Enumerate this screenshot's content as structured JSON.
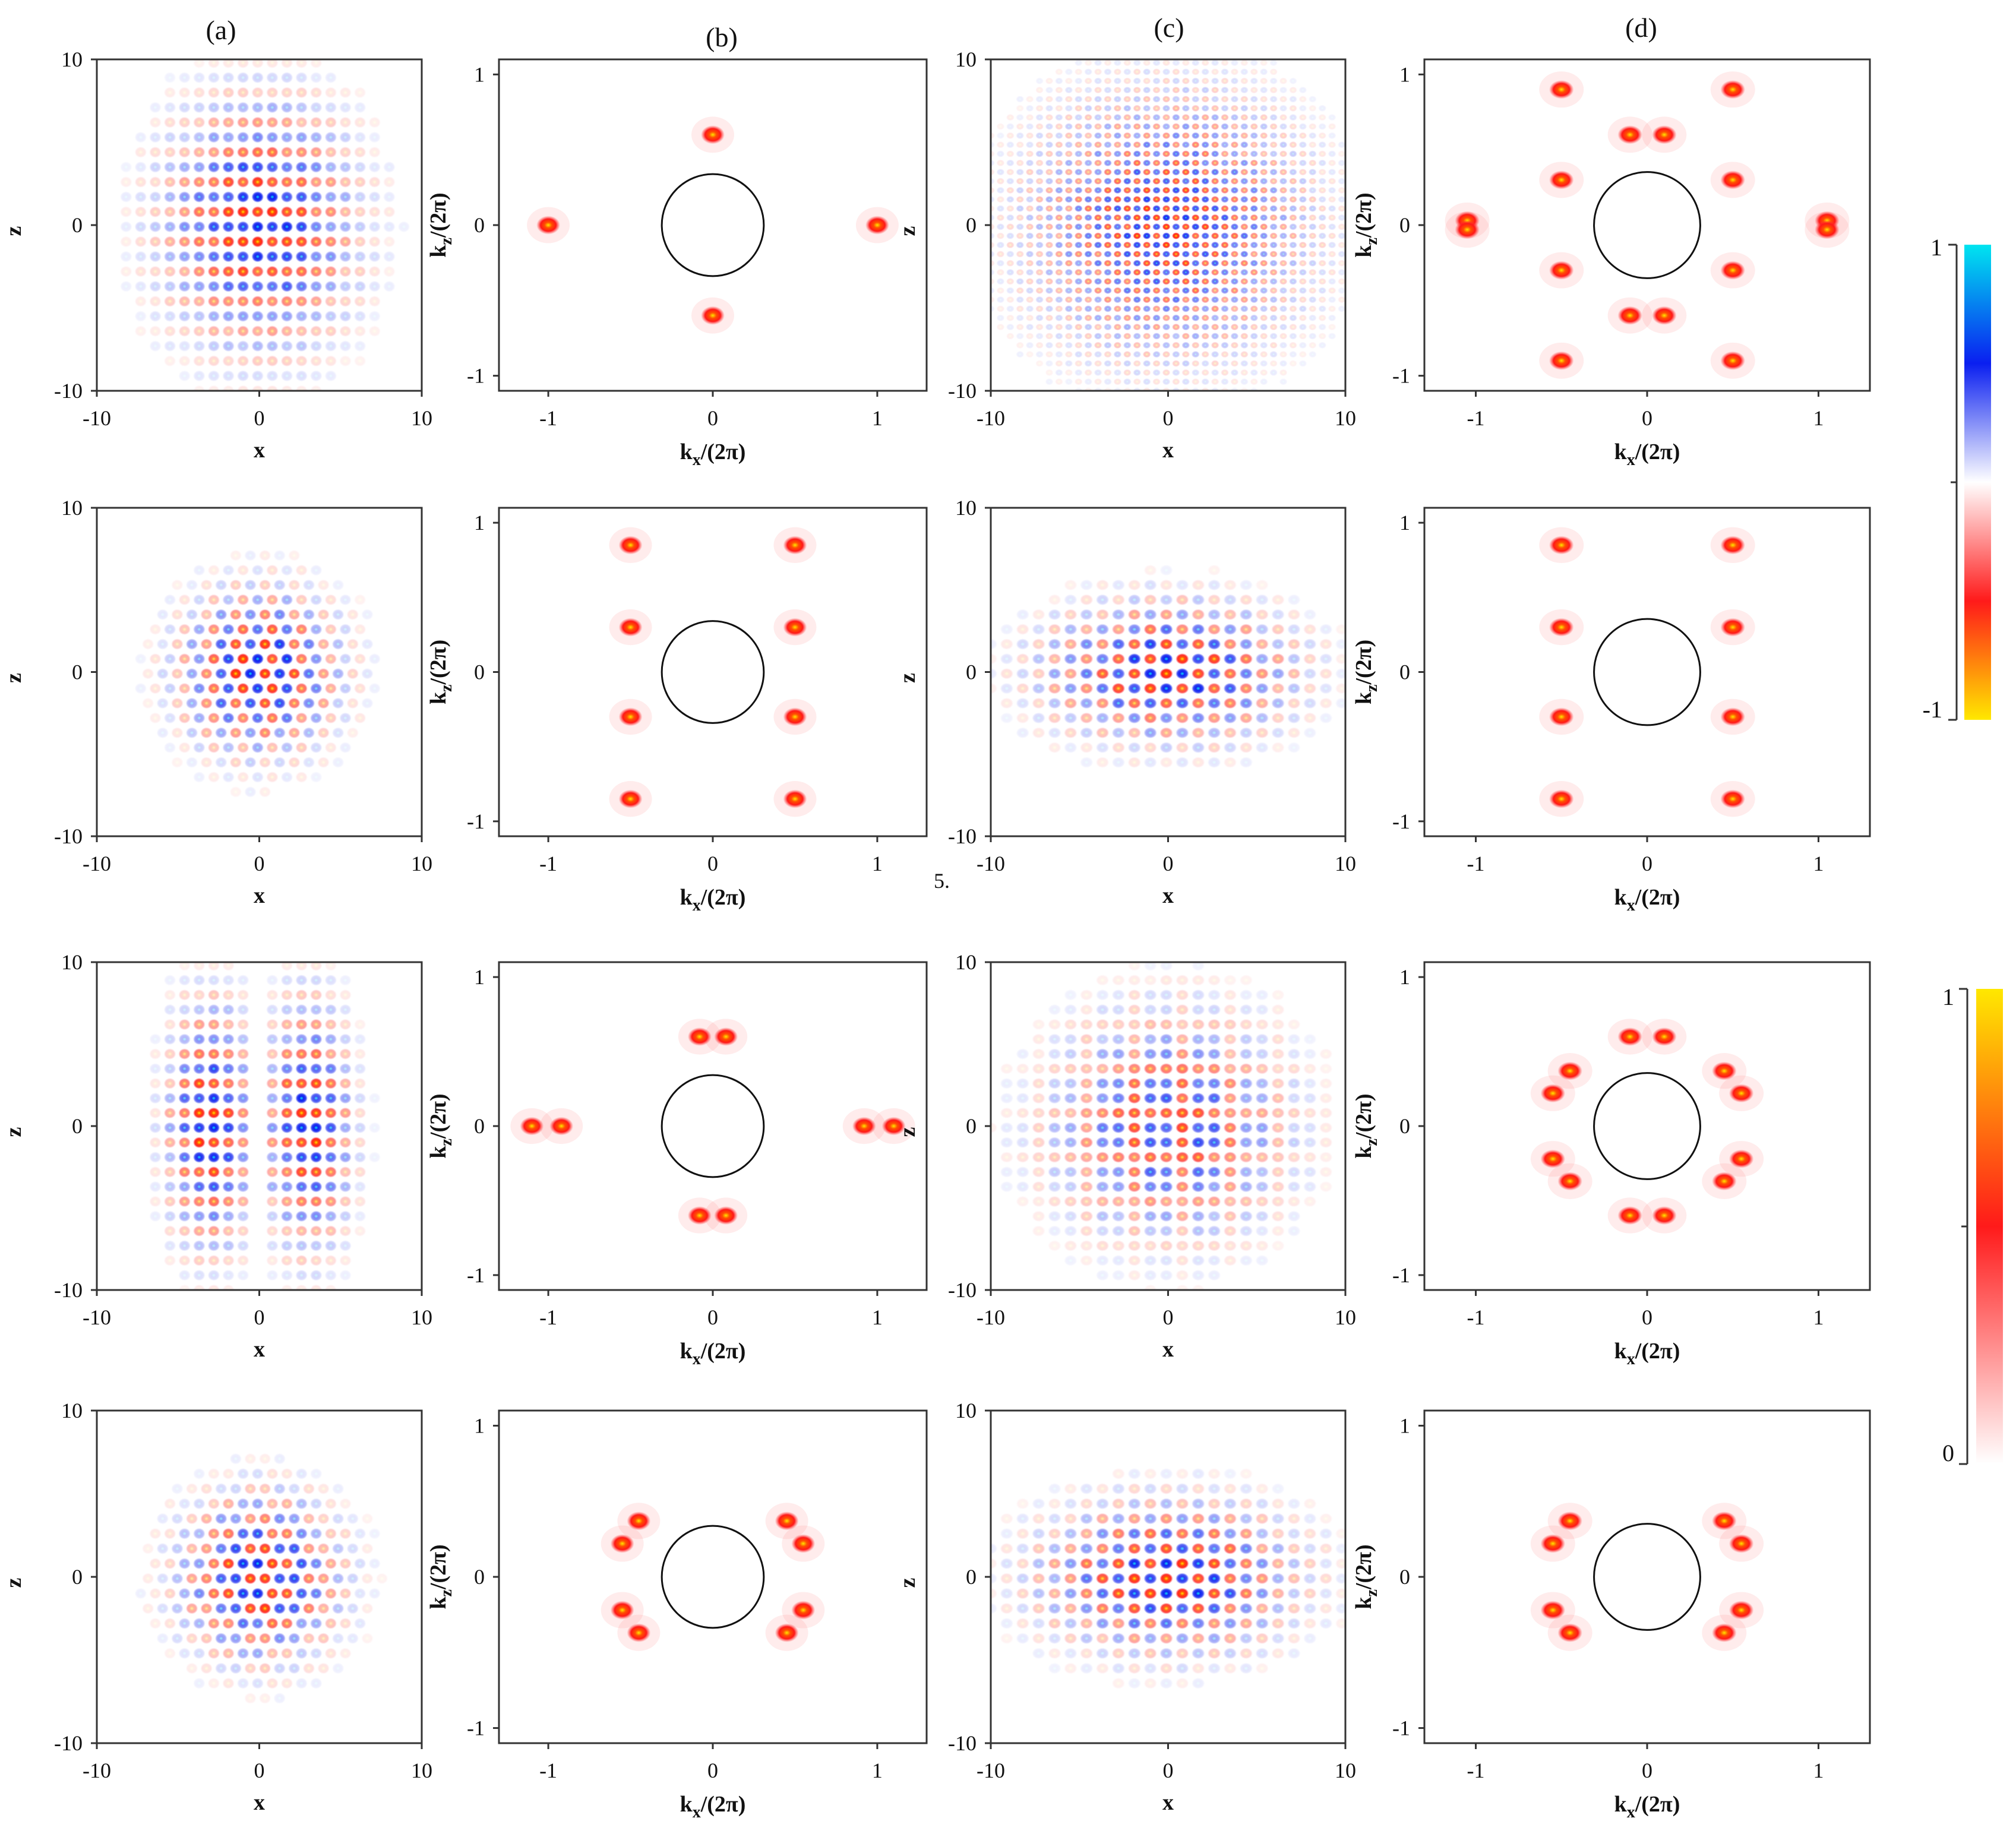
{
  "figure": {
    "column_labels": [
      "(a)",
      "(b)",
      "(c)",
      "(d)"
    ],
    "stray_text": "5."
  },
  "chart_data": {
    "type": "heatmap",
    "grid": "4 rows × 4 columns of panels",
    "real_space": {
      "xlabel": "x",
      "ylabel": "z",
      "xlim": [
        -10,
        10
      ],
      "ylim": [
        -10,
        10
      ],
      "xticks": [
        "-10",
        "0",
        "10"
      ],
      "yticks": [
        "10",
        "0",
        "-10"
      ],
      "colormap": "diverging (yellow-red-white-blue-cyan)"
    },
    "momentum_space": {
      "xlabel": "k",
      "xlabel_sub": "x",
      "xlabel_suffix": "/(2π)",
      "ylabel": "k",
      "ylabel_sub": "z",
      "ylabel_suffix": "/(2π)",
      "xlim": [
        -1.3,
        1.3
      ],
      "ylim": [
        -1.1,
        1.1
      ],
      "xticks": [
        "-1",
        "0",
        "1"
      ],
      "yticks": [
        "1",
        "0",
        "-1"
      ],
      "circle_radius": 0.31,
      "colormap": "sequential (white-red-yellow)"
    },
    "panels": [
      {
        "row": 1,
        "col": "a",
        "kind": "real",
        "pattern": "stripes_h",
        "peak_k": [
          [
            0,
            0.6
          ],
          [
            0,
            -0.6
          ]
        ]
      },
      {
        "row": 1,
        "col": "b",
        "kind": "momentum",
        "peaks": [
          [
            0,
            0.6
          ],
          [
            0,
            -0.6
          ],
          [
            -1.0,
            0
          ],
          [
            1.0,
            0
          ]
        ]
      },
      {
        "row": 1,
        "col": "c",
        "kind": "real",
        "pattern": "fine_lattice"
      },
      {
        "row": 1,
        "col": "d",
        "kind": "momentum",
        "peaks": [
          [
            -0.1,
            0.6
          ],
          [
            0.1,
            0.6
          ],
          [
            -0.1,
            -0.6
          ],
          [
            0.1,
            -0.6
          ],
          [
            -0.5,
            0.3
          ],
          [
            0.5,
            0.3
          ],
          [
            -0.5,
            -0.3
          ],
          [
            0.5,
            -0.3
          ],
          [
            -0.5,
            0.9
          ],
          [
            0.5,
            0.9
          ],
          [
            -0.5,
            -0.9
          ],
          [
            0.5,
            -0.9
          ],
          [
            -1.05,
            0.03
          ],
          [
            -1.05,
            -0.03
          ],
          [
            1.05,
            0.03
          ],
          [
            1.05,
            -0.03
          ]
        ]
      },
      {
        "row": 2,
        "col": "a",
        "kind": "real",
        "pattern": "hexagonal"
      },
      {
        "row": 2,
        "col": "b",
        "kind": "momentum",
        "peaks": [
          [
            -0.5,
            0.3
          ],
          [
            0.5,
            0.3
          ],
          [
            -0.5,
            -0.3
          ],
          [
            0.5,
            -0.3
          ],
          [
            -0.5,
            0.85
          ],
          [
            0.5,
            0.85
          ],
          [
            -0.5,
            -0.85
          ],
          [
            0.5,
            -0.85
          ]
        ]
      },
      {
        "row": 2,
        "col": "c",
        "kind": "real",
        "pattern": "rows"
      },
      {
        "row": 2,
        "col": "d",
        "kind": "momentum",
        "peaks": [
          [
            -0.5,
            0.3
          ],
          [
            0.5,
            0.3
          ],
          [
            -0.5,
            -0.3
          ],
          [
            0.5,
            -0.3
          ],
          [
            -0.5,
            0.85
          ],
          [
            0.5,
            0.85
          ],
          [
            -0.5,
            -0.85
          ],
          [
            0.5,
            -0.85
          ]
        ]
      },
      {
        "row": 3,
        "col": "a",
        "kind": "real",
        "pattern": "split_columns"
      },
      {
        "row": 3,
        "col": "b",
        "kind": "momentum",
        "peaks": [
          [
            -0.08,
            0.6
          ],
          [
            0.08,
            0.6
          ],
          [
            -0.08,
            -0.6
          ],
          [
            0.08,
            -0.6
          ],
          [
            -1.1,
            0
          ],
          [
            -0.92,
            0
          ],
          [
            0.92,
            0
          ],
          [
            1.1,
            0
          ]
        ]
      },
      {
        "row": 3,
        "col": "c",
        "kind": "real",
        "pattern": "complex_lattice"
      },
      {
        "row": 3,
        "col": "d",
        "kind": "momentum",
        "peaks": [
          [
            -0.1,
            0.6
          ],
          [
            0.1,
            0.6
          ],
          [
            -0.1,
            -0.6
          ],
          [
            0.1,
            -0.6
          ],
          [
            -0.45,
            0.37
          ],
          [
            -0.55,
            0.22
          ],
          [
            0.45,
            0.37
          ],
          [
            0.55,
            0.22
          ],
          [
            -0.45,
            -0.37
          ],
          [
            -0.55,
            -0.22
          ],
          [
            0.45,
            -0.37
          ],
          [
            0.55,
            -0.22
          ]
        ]
      },
      {
        "row": 4,
        "col": "a",
        "kind": "real",
        "pattern": "zigzag"
      },
      {
        "row": 4,
        "col": "b",
        "kind": "momentum",
        "peaks": [
          [
            -0.45,
            0.37
          ],
          [
            -0.55,
            0.22
          ],
          [
            0.45,
            0.37
          ],
          [
            0.55,
            0.22
          ],
          [
            -0.45,
            -0.37
          ],
          [
            -0.55,
            -0.22
          ],
          [
            0.45,
            -0.37
          ],
          [
            0.55,
            -0.22
          ]
        ]
      },
      {
        "row": 4,
        "col": "c",
        "kind": "real",
        "pattern": "chevron"
      },
      {
        "row": 4,
        "col": "d",
        "kind": "momentum",
        "peaks": [
          [
            -0.45,
            0.37
          ],
          [
            -0.55,
            0.22
          ],
          [
            0.45,
            0.37
          ],
          [
            0.55,
            0.22
          ],
          [
            -0.45,
            -0.37
          ],
          [
            -0.55,
            -0.22
          ],
          [
            0.45,
            -0.37
          ],
          [
            0.55,
            -0.22
          ]
        ]
      }
    ],
    "colorbars": [
      {
        "name": "diverging",
        "max_label": "1",
        "min_label": "-1",
        "stops": [
          "#00e5f0",
          "#0a1ff0",
          "#ffffff",
          "#ff1a1a",
          "#ffe800"
        ]
      },
      {
        "name": "sequential",
        "max_label": "1",
        "min_label": "0",
        "stops": [
          "#ffe800",
          "#ff1a1a",
          "#ffffff"
        ]
      }
    ]
  }
}
